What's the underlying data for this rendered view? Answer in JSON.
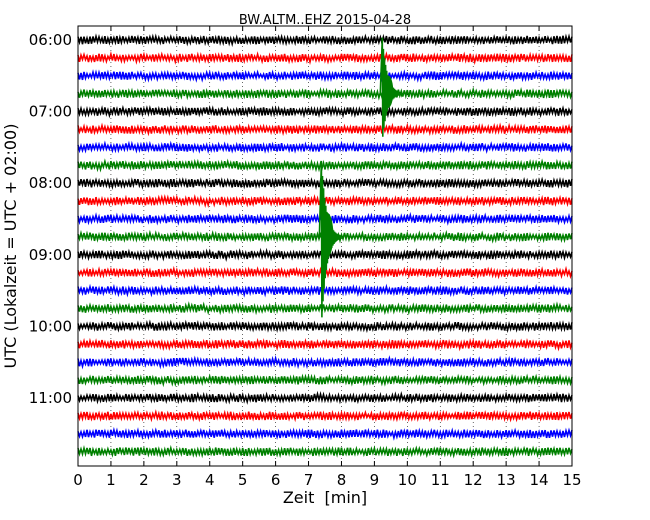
{
  "chart_data": {
    "type": "line",
    "title": "BW.ALTM..EHZ 2015-04-28",
    "xlabel": "Zeit  [min]",
    "ylabel": "UTC (Lokalzeit = UTC + 02:00)",
    "xlim": [
      0,
      15
    ],
    "x_ticks": [
      0,
      1,
      2,
      3,
      4,
      5,
      6,
      7,
      8,
      9,
      10,
      11,
      12,
      13,
      14,
      15
    ],
    "y_ticks": [
      "06:00",
      "07:00",
      "08:00",
      "09:00",
      "10:00",
      "11:00"
    ],
    "trace_start_times": [
      "06:00",
      "06:15",
      "06:30",
      "06:45",
      "07:00",
      "07:15",
      "07:30",
      "07:45",
      "08:00",
      "08:15",
      "08:30",
      "08:45",
      "09:00",
      "09:15",
      "09:30",
      "09:45",
      "10:00",
      "10:15",
      "10:30",
      "10:45",
      "11:00",
      "11:15",
      "11:30",
      "11:45"
    ],
    "trace_colors": [
      "#000000",
      "#ff0000",
      "#0000ff",
      "#008000"
    ],
    "grid": "vertical dotted at each minute",
    "events": [
      {
        "trace_start": "06:45",
        "minute": 9.3
      },
      {
        "trace_start": "08:45",
        "minute": 7.45
      }
    ]
  }
}
